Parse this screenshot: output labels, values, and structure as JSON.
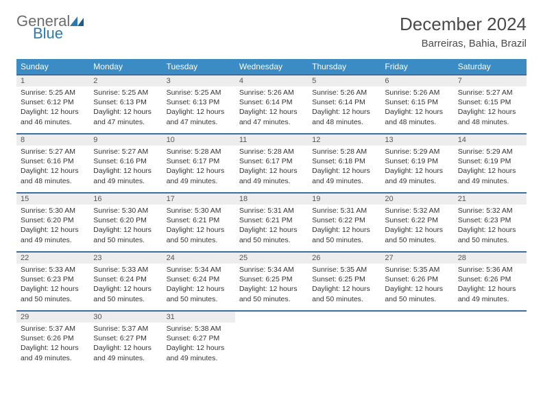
{
  "logo": {
    "text_general": "General",
    "text_blue": "Blue"
  },
  "title": "December 2024",
  "location": "Barreiras, Bahia, Brazil",
  "colors": {
    "header_bg": "#3b8bc4",
    "header_text": "#ffffff",
    "row_border": "#3b6e9e",
    "daynum_bg": "#ededed",
    "text": "#333333",
    "logo_gray": "#6c6c6c",
    "logo_blue": "#2a7ab0",
    "page_bg": "#ffffff"
  },
  "day_names": [
    "Sunday",
    "Monday",
    "Tuesday",
    "Wednesday",
    "Thursday",
    "Friday",
    "Saturday"
  ],
  "weeks": [
    [
      {
        "n": "1",
        "sr": "5:25 AM",
        "ss": "6:12 PM",
        "dl": "12 hours and 46 minutes."
      },
      {
        "n": "2",
        "sr": "5:25 AM",
        "ss": "6:13 PM",
        "dl": "12 hours and 47 minutes."
      },
      {
        "n": "3",
        "sr": "5:25 AM",
        "ss": "6:13 PM",
        "dl": "12 hours and 47 minutes."
      },
      {
        "n": "4",
        "sr": "5:26 AM",
        "ss": "6:14 PM",
        "dl": "12 hours and 47 minutes."
      },
      {
        "n": "5",
        "sr": "5:26 AM",
        "ss": "6:14 PM",
        "dl": "12 hours and 48 minutes."
      },
      {
        "n": "6",
        "sr": "5:26 AM",
        "ss": "6:15 PM",
        "dl": "12 hours and 48 minutes."
      },
      {
        "n": "7",
        "sr": "5:27 AM",
        "ss": "6:15 PM",
        "dl": "12 hours and 48 minutes."
      }
    ],
    [
      {
        "n": "8",
        "sr": "5:27 AM",
        "ss": "6:16 PM",
        "dl": "12 hours and 48 minutes."
      },
      {
        "n": "9",
        "sr": "5:27 AM",
        "ss": "6:16 PM",
        "dl": "12 hours and 49 minutes."
      },
      {
        "n": "10",
        "sr": "5:28 AM",
        "ss": "6:17 PM",
        "dl": "12 hours and 49 minutes."
      },
      {
        "n": "11",
        "sr": "5:28 AM",
        "ss": "6:17 PM",
        "dl": "12 hours and 49 minutes."
      },
      {
        "n": "12",
        "sr": "5:28 AM",
        "ss": "6:18 PM",
        "dl": "12 hours and 49 minutes."
      },
      {
        "n": "13",
        "sr": "5:29 AM",
        "ss": "6:19 PM",
        "dl": "12 hours and 49 minutes."
      },
      {
        "n": "14",
        "sr": "5:29 AM",
        "ss": "6:19 PM",
        "dl": "12 hours and 49 minutes."
      }
    ],
    [
      {
        "n": "15",
        "sr": "5:30 AM",
        "ss": "6:20 PM",
        "dl": "12 hours and 49 minutes."
      },
      {
        "n": "16",
        "sr": "5:30 AM",
        "ss": "6:20 PM",
        "dl": "12 hours and 50 minutes."
      },
      {
        "n": "17",
        "sr": "5:30 AM",
        "ss": "6:21 PM",
        "dl": "12 hours and 50 minutes."
      },
      {
        "n": "18",
        "sr": "5:31 AM",
        "ss": "6:21 PM",
        "dl": "12 hours and 50 minutes."
      },
      {
        "n": "19",
        "sr": "5:31 AM",
        "ss": "6:22 PM",
        "dl": "12 hours and 50 minutes."
      },
      {
        "n": "20",
        "sr": "5:32 AM",
        "ss": "6:22 PM",
        "dl": "12 hours and 50 minutes."
      },
      {
        "n": "21",
        "sr": "5:32 AM",
        "ss": "6:23 PM",
        "dl": "12 hours and 50 minutes."
      }
    ],
    [
      {
        "n": "22",
        "sr": "5:33 AM",
        "ss": "6:23 PM",
        "dl": "12 hours and 50 minutes."
      },
      {
        "n": "23",
        "sr": "5:33 AM",
        "ss": "6:24 PM",
        "dl": "12 hours and 50 minutes."
      },
      {
        "n": "24",
        "sr": "5:34 AM",
        "ss": "6:24 PM",
        "dl": "12 hours and 50 minutes."
      },
      {
        "n": "25",
        "sr": "5:34 AM",
        "ss": "6:25 PM",
        "dl": "12 hours and 50 minutes."
      },
      {
        "n": "26",
        "sr": "5:35 AM",
        "ss": "6:25 PM",
        "dl": "12 hours and 50 minutes."
      },
      {
        "n": "27",
        "sr": "5:35 AM",
        "ss": "6:26 PM",
        "dl": "12 hours and 50 minutes."
      },
      {
        "n": "28",
        "sr": "5:36 AM",
        "ss": "6:26 PM",
        "dl": "12 hours and 49 minutes."
      }
    ],
    [
      {
        "n": "29",
        "sr": "5:37 AM",
        "ss": "6:26 PM",
        "dl": "12 hours and 49 minutes."
      },
      {
        "n": "30",
        "sr": "5:37 AM",
        "ss": "6:27 PM",
        "dl": "12 hours and 49 minutes."
      },
      {
        "n": "31",
        "sr": "5:38 AM",
        "ss": "6:27 PM",
        "dl": "12 hours and 49 minutes."
      },
      null,
      null,
      null,
      null
    ]
  ],
  "labels": {
    "sunrise": "Sunrise: ",
    "sunset": "Sunset: ",
    "daylight": "Daylight: "
  }
}
